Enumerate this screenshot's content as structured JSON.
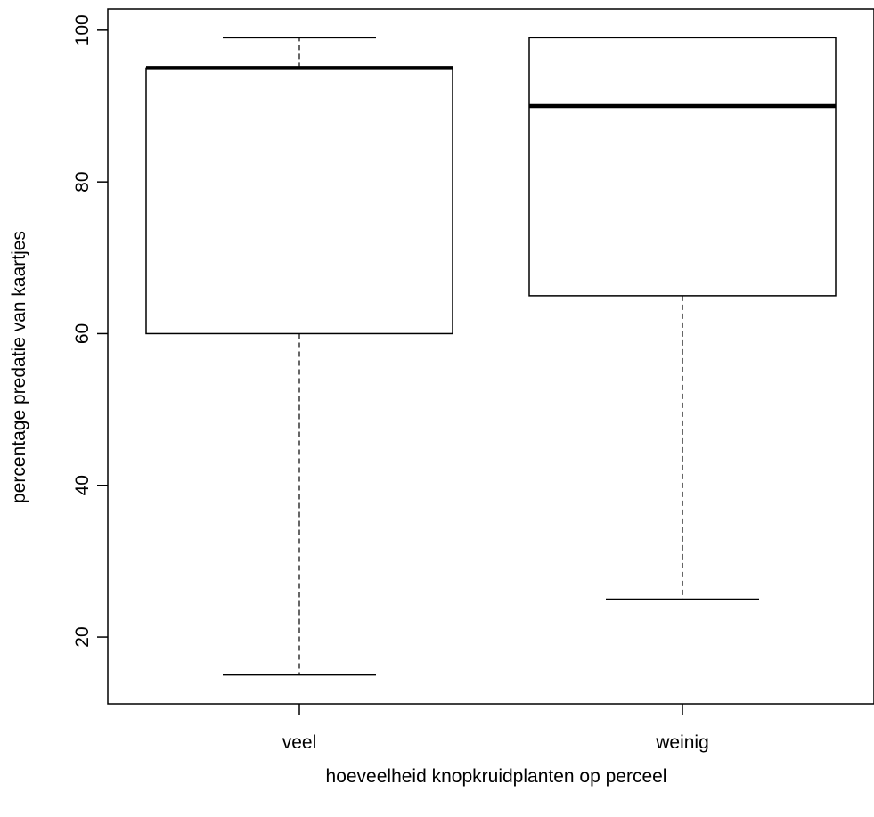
{
  "chart_data": {
    "type": "boxplot",
    "title": "",
    "xlabel": "hoeveelheid knopkruidplanten op perceel",
    "ylabel": "percentage predatie van kaartjes",
    "ylim": [
      11.2,
      102.8
    ],
    "yticks": [
      20,
      40,
      60,
      80,
      100
    ],
    "ytick_labels": [
      "20",
      "40",
      "60",
      "80",
      "100"
    ],
    "categories": [
      "veel",
      "weinig"
    ],
    "boxes": [
      {
        "category": "veel",
        "whisker_low": 15,
        "q1": 60,
        "median": 95,
        "q3": 95,
        "whisker_high": 99
      },
      {
        "category": "weinig",
        "whisker_low": 25,
        "q1": 65,
        "median": 90,
        "q3": 99,
        "whisker_high": 99
      }
    ],
    "grid": false,
    "legend": "none"
  }
}
